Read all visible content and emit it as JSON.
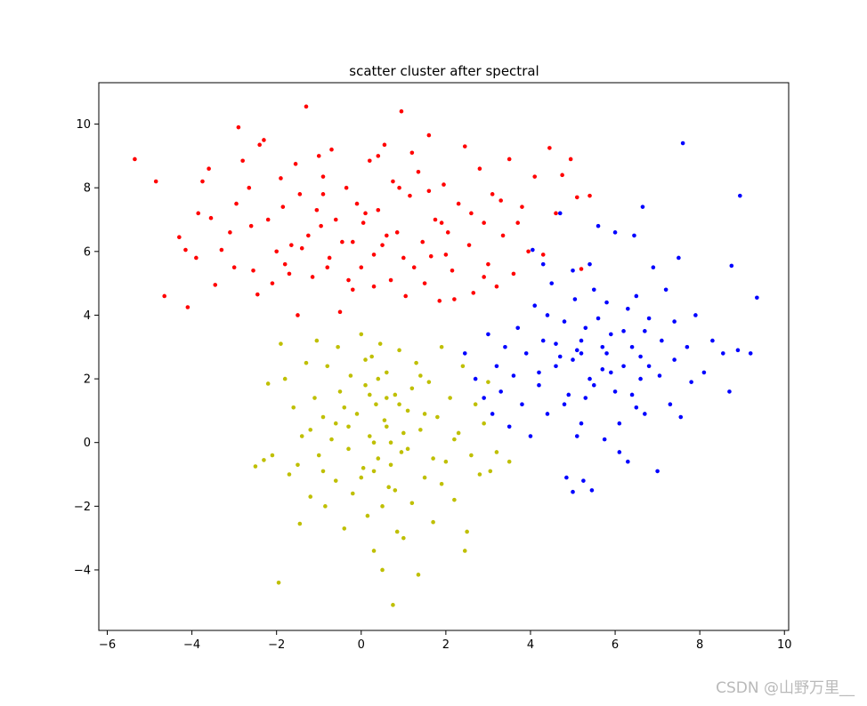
{
  "chart_data": {
    "type": "scatter",
    "title": "scatter cluster after spectral",
    "xlabel": "",
    "ylabel": "",
    "xlim": [
      -6.2,
      10.1
    ],
    "ylim": [
      -5.9,
      11.3
    ],
    "xticks": [
      -6,
      -4,
      -2,
      0,
      2,
      4,
      6,
      8,
      10
    ],
    "yticks": [
      -4,
      -2,
      0,
      2,
      4,
      6,
      8,
      10
    ],
    "grid": false,
    "legend": "none",
    "series": [
      {
        "color": "#ff0000",
        "points": [
          [
            -5.35,
            8.9
          ],
          [
            -4.85,
            8.2
          ],
          [
            -4.65,
            4.6
          ],
          [
            -4.3,
            6.45
          ],
          [
            -4.15,
            6.05
          ],
          [
            -4.1,
            4.25
          ],
          [
            -3.85,
            7.2
          ],
          [
            -3.75,
            8.2
          ],
          [
            -3.6,
            8.6
          ],
          [
            -3.55,
            7.05
          ],
          [
            -3.45,
            4.95
          ],
          [
            -3.3,
            6.05
          ],
          [
            -3.1,
            6.6
          ],
          [
            -2.95,
            7.5
          ],
          [
            -2.9,
            9.9
          ],
          [
            -2.8,
            8.85
          ],
          [
            -2.65,
            8.0
          ],
          [
            -2.55,
            5.4
          ],
          [
            -2.45,
            4.65
          ],
          [
            -2.4,
            9.35
          ],
          [
            -2.3,
            9.5
          ],
          [
            -2.2,
            7.0
          ],
          [
            -2.0,
            6.0
          ],
          [
            -1.85,
            7.4
          ],
          [
            -1.8,
            5.6
          ],
          [
            -1.65,
            6.2
          ],
          [
            -1.55,
            8.75
          ],
          [
            -1.45,
            7.8
          ],
          [
            -1.3,
            10.55
          ],
          [
            -1.25,
            6.5
          ],
          [
            -1.15,
            5.2
          ],
          [
            -1.05,
            7.3
          ],
          [
            -0.95,
            6.8
          ],
          [
            -0.9,
            8.35
          ],
          [
            -0.75,
            5.8
          ],
          [
            -0.7,
            9.2
          ],
          [
            -0.6,
            7.0
          ],
          [
            -0.45,
            6.3
          ],
          [
            -0.35,
            8.0
          ],
          [
            -0.3,
            5.1
          ],
          [
            -0.2,
            4.8
          ],
          [
            -0.1,
            7.5
          ],
          [
            0.05,
            6.9
          ],
          [
            0.2,
            8.85
          ],
          [
            0.3,
            5.9
          ],
          [
            0.4,
            7.3
          ],
          [
            0.5,
            6.2
          ],
          [
            0.55,
            9.35
          ],
          [
            0.7,
            5.1
          ],
          [
            0.75,
            8.2
          ],
          [
            0.85,
            6.6
          ],
          [
            0.95,
            10.4
          ],
          [
            1.05,
            4.6
          ],
          [
            1.15,
            7.75
          ],
          [
            1.25,
            5.5
          ],
          [
            1.35,
            8.5
          ],
          [
            1.45,
            6.3
          ],
          [
            1.6,
            9.65
          ],
          [
            1.65,
            5.85
          ],
          [
            1.75,
            7.0
          ],
          [
            1.85,
            4.45
          ],
          [
            1.95,
            8.1
          ],
          [
            2.05,
            6.6
          ],
          [
            2.15,
            5.4
          ],
          [
            2.3,
            7.5
          ],
          [
            2.45,
            9.3
          ],
          [
            2.55,
            6.2
          ],
          [
            2.65,
            4.7
          ],
          [
            2.8,
            8.6
          ],
          [
            2.9,
            6.9
          ],
          [
            3.0,
            5.6
          ],
          [
            3.1,
            7.8
          ],
          [
            3.2,
            4.9
          ],
          [
            3.35,
            6.5
          ],
          [
            3.5,
            8.9
          ],
          [
            3.6,
            5.3
          ],
          [
            3.8,
            7.4
          ],
          [
            3.95,
            6.0
          ],
          [
            4.1,
            8.35
          ],
          [
            4.3,
            5.9
          ],
          [
            4.45,
            9.25
          ],
          [
            4.6,
            7.2
          ],
          [
            4.75,
            8.4
          ],
          [
            4.95,
            8.9
          ],
          [
            5.1,
            7.7
          ],
          [
            5.2,
            5.45
          ],
          [
            5.4,
            7.75
          ],
          [
            0.3,
            4.9
          ],
          [
            -0.5,
            4.1
          ],
          [
            -1.5,
            4.0
          ],
          [
            1.5,
            5.0
          ],
          [
            2.2,
            4.5
          ],
          [
            0.0,
            5.5
          ],
          [
            -2.1,
            5.0
          ],
          [
            -3.0,
            5.5
          ],
          [
            -0.8,
            5.5
          ],
          [
            -1.9,
            8.3
          ],
          [
            0.9,
            8.0
          ],
          [
            1.9,
            6.9
          ],
          [
            2.6,
            7.2
          ],
          [
            3.3,
            7.6
          ],
          [
            -1.0,
            9.0
          ],
          [
            0.4,
            9.0
          ],
          [
            1.2,
            9.1
          ],
          [
            -2.6,
            6.8
          ],
          [
            -3.9,
            5.8
          ],
          [
            -0.2,
            6.3
          ],
          [
            1.0,
            5.8
          ],
          [
            0.6,
            6.5
          ],
          [
            -1.4,
            6.1
          ],
          [
            2.9,
            5.2
          ],
          [
            3.7,
            6.9
          ],
          [
            -0.9,
            7.8
          ],
          [
            1.6,
            7.9
          ],
          [
            0.1,
            7.2
          ],
          [
            -1.7,
            5.3
          ],
          [
            2.0,
            5.9
          ]
        ]
      },
      {
        "color": "#0000ff",
        "points": [
          [
            2.45,
            2.8
          ],
          [
            2.7,
            2.0
          ],
          [
            2.9,
            1.4
          ],
          [
            3.0,
            3.4
          ],
          [
            3.1,
            0.9
          ],
          [
            3.2,
            2.4
          ],
          [
            3.3,
            1.6
          ],
          [
            3.4,
            3.0
          ],
          [
            3.5,
            0.5
          ],
          [
            3.6,
            2.1
          ],
          [
            3.7,
            3.6
          ],
          [
            3.8,
            1.2
          ],
          [
            3.9,
            2.8
          ],
          [
            4.0,
            0.2
          ],
          [
            4.05,
            6.05
          ],
          [
            4.1,
            4.3
          ],
          [
            4.2,
            1.8
          ],
          [
            4.3,
            3.2
          ],
          [
            4.4,
            0.9
          ],
          [
            4.5,
            5.0
          ],
          [
            4.6,
            2.4
          ],
          [
            4.7,
            7.2
          ],
          [
            4.8,
            3.8
          ],
          [
            4.85,
            -1.1
          ],
          [
            4.9,
            1.5
          ],
          [
            5.0,
            -1.55
          ],
          [
            5.05,
            4.5
          ],
          [
            5.1,
            2.9
          ],
          [
            5.2,
            0.6
          ],
          [
            5.25,
            -1.2
          ],
          [
            5.3,
            3.6
          ],
          [
            5.4,
            5.6
          ],
          [
            5.45,
            -1.5
          ],
          [
            5.5,
            1.8
          ],
          [
            5.6,
            6.8
          ],
          [
            5.7,
            3.0
          ],
          [
            5.75,
            0.1
          ],
          [
            5.8,
            4.4
          ],
          [
            5.9,
            2.2
          ],
          [
            6.0,
            6.6
          ],
          [
            6.1,
            -0.3
          ],
          [
            6.2,
            3.5
          ],
          [
            6.3,
            -0.6
          ],
          [
            6.4,
            1.5
          ],
          [
            6.45,
            6.5
          ],
          [
            6.5,
            4.6
          ],
          [
            6.6,
            2.7
          ],
          [
            6.65,
            7.4
          ],
          [
            6.7,
            0.9
          ],
          [
            6.8,
            3.9
          ],
          [
            6.9,
            5.5
          ],
          [
            7.0,
            -0.9
          ],
          [
            7.05,
            2.1
          ],
          [
            7.1,
            3.2
          ],
          [
            7.2,
            4.8
          ],
          [
            7.3,
            1.2
          ],
          [
            7.4,
            2.6
          ],
          [
            7.5,
            5.8
          ],
          [
            7.55,
            0.8
          ],
          [
            7.6,
            9.4
          ],
          [
            7.7,
            3.0
          ],
          [
            7.8,
            1.9
          ],
          [
            7.9,
            4.0
          ],
          [
            8.1,
            2.2
          ],
          [
            8.3,
            3.2
          ],
          [
            8.55,
            2.8
          ],
          [
            8.7,
            1.6
          ],
          [
            8.75,
            5.55
          ],
          [
            8.9,
            2.9
          ],
          [
            8.95,
            7.75
          ],
          [
            9.2,
            2.8
          ],
          [
            9.35,
            4.55
          ],
          [
            4.2,
            2.2
          ],
          [
            4.6,
            3.1
          ],
          [
            5.0,
            2.6
          ],
          [
            5.4,
            2.0
          ],
          [
            5.8,
            2.8
          ],
          [
            6.2,
            2.4
          ],
          [
            6.6,
            2.0
          ],
          [
            5.2,
            3.2
          ],
          [
            5.6,
            3.9
          ],
          [
            6.0,
            1.6
          ],
          [
            4.8,
            1.2
          ],
          [
            5.1,
            0.2
          ],
          [
            6.4,
            3.0
          ],
          [
            6.8,
            2.4
          ],
          [
            5.5,
            4.8
          ],
          [
            4.4,
            4.0
          ],
          [
            5.9,
            3.4
          ],
          [
            6.1,
            0.6
          ],
          [
            4.7,
            2.7
          ],
          [
            5.3,
            1.4
          ],
          [
            6.7,
            3.5
          ],
          [
            7.4,
            3.8
          ],
          [
            5.0,
            5.4
          ],
          [
            4.3,
            5.6
          ],
          [
            6.5,
            1.1
          ],
          [
            5.7,
            2.3
          ],
          [
            5.2,
            2.8
          ],
          [
            6.3,
            4.2
          ]
        ]
      },
      {
        "color": "#bfbf00",
        "points": [
          [
            -2.5,
            -0.75
          ],
          [
            -2.3,
            -0.55
          ],
          [
            -2.2,
            1.85
          ],
          [
            -2.1,
            -0.4
          ],
          [
            -1.95,
            -4.4
          ],
          [
            -1.9,
            3.1
          ],
          [
            -1.8,
            2.0
          ],
          [
            -1.7,
            -1.0
          ],
          [
            -1.6,
            1.1
          ],
          [
            -1.5,
            -0.7
          ],
          [
            -1.45,
            -2.55
          ],
          [
            -1.4,
            0.2
          ],
          [
            -1.3,
            2.5
          ],
          [
            -1.2,
            -1.7
          ],
          [
            -1.1,
            1.4
          ],
          [
            -1.05,
            3.2
          ],
          [
            -1.0,
            -0.4
          ],
          [
            -0.9,
            0.8
          ],
          [
            -0.85,
            -2.0
          ],
          [
            -0.8,
            2.4
          ],
          [
            -0.7,
            0.1
          ],
          [
            -0.6,
            -1.2
          ],
          [
            -0.55,
            3.0
          ],
          [
            -0.5,
            1.6
          ],
          [
            -0.4,
            -2.7
          ],
          [
            -0.3,
            0.5
          ],
          [
            -0.25,
            2.1
          ],
          [
            -0.2,
            -1.6
          ],
          [
            -0.1,
            0.9
          ],
          [
            0.0,
            3.4
          ],
          [
            0.05,
            -0.8
          ],
          [
            0.1,
            1.8
          ],
          [
            0.15,
            -2.3
          ],
          [
            0.2,
            0.2
          ],
          [
            0.25,
            2.7
          ],
          [
            0.3,
            -3.4
          ],
          [
            0.35,
            1.2
          ],
          [
            0.4,
            -0.5
          ],
          [
            0.45,
            3.1
          ],
          [
            0.5,
            -4.0
          ],
          [
            0.55,
            0.7
          ],
          [
            0.6,
            2.2
          ],
          [
            0.65,
            -1.4
          ],
          [
            0.7,
            0.0
          ],
          [
            0.75,
            -5.1
          ],
          [
            0.8,
            1.5
          ],
          [
            0.85,
            -2.8
          ],
          [
            0.9,
            2.9
          ],
          [
            0.95,
            -0.3
          ],
          [
            1.0,
            -3.0
          ],
          [
            1.1,
            1.0
          ],
          [
            1.2,
            -1.9
          ],
          [
            1.3,
            2.5
          ],
          [
            1.35,
            -4.15
          ],
          [
            1.4,
            0.4
          ],
          [
            1.5,
            -1.1
          ],
          [
            1.6,
            1.9
          ],
          [
            1.7,
            -2.5
          ],
          [
            1.8,
            0.8
          ],
          [
            1.9,
            3.0
          ],
          [
            2.0,
            -0.6
          ],
          [
            2.1,
            1.4
          ],
          [
            2.2,
            -1.8
          ],
          [
            2.3,
            0.3
          ],
          [
            2.4,
            2.4
          ],
          [
            2.45,
            -3.4
          ],
          [
            2.5,
            -2.8
          ],
          [
            2.6,
            -0.4
          ],
          [
            2.7,
            1.2
          ],
          [
            2.8,
            -1.0
          ],
          [
            2.9,
            0.6
          ],
          [
            3.0,
            1.9
          ],
          [
            3.05,
            -0.9
          ],
          [
            3.2,
            -0.3
          ],
          [
            3.5,
            -0.6
          ],
          [
            0.3,
            0.0
          ],
          [
            0.6,
            0.5
          ],
          [
            0.9,
            1.2
          ],
          [
            0.2,
            1.5
          ],
          [
            0.7,
            -0.7
          ],
          [
            1.1,
            -0.2
          ],
          [
            0.4,
            2.0
          ],
          [
            1.5,
            0.9
          ],
          [
            -0.3,
            -0.2
          ],
          [
            0.0,
            -1.1
          ],
          [
            1.2,
            1.7
          ],
          [
            0.8,
            -1.5
          ],
          [
            -0.6,
            0.6
          ],
          [
            1.7,
            -0.5
          ],
          [
            0.1,
            2.6
          ],
          [
            -0.9,
            -0.9
          ],
          [
            1.4,
            2.1
          ],
          [
            0.5,
            -2.0
          ],
          [
            -0.4,
            1.1
          ],
          [
            2.2,
            0.1
          ],
          [
            1.0,
            0.3
          ],
          [
            0.3,
            -0.9
          ],
          [
            -1.2,
            0.4
          ],
          [
            1.9,
            -1.3
          ],
          [
            0.6,
            1.4
          ]
        ]
      }
    ]
  },
  "watermark": "CSDN @山野万里__"
}
